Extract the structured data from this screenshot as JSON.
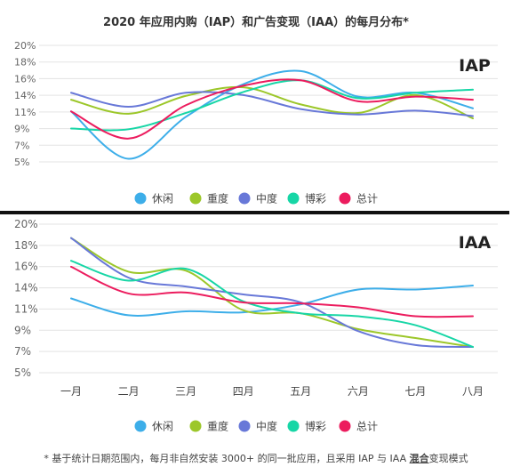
{
  "title": "2020 年应用内购（IAP）和广告变现（IAA）的每月分布*",
  "footnote": {
    "prefix": "* 基于统计日期范围内，每月非自然安装 3000+ 的同一批应用，且采用 IAP 与 IAA ",
    "highlight": "混合",
    "suffix": "变现模式"
  },
  "colors": {
    "休闲": "#3daee9",
    "重度": "#9cc72a",
    "中度": "#6878d8",
    "博彩": "#17d6a6",
    "总计": "#ec1c5e"
  },
  "chart_data": [
    {
      "type": "line",
      "panel_label": "IAP",
      "y_tick_labels": [
        "20%",
        "18%",
        "16%",
        "14%",
        "11%",
        "9%",
        "7%",
        "5%"
      ],
      "ylim": [
        5,
        20
      ],
      "legend_position": "bottom",
      "x": [
        "一月",
        "二月",
        "三月",
        "四月",
        "五月",
        "六月",
        "七月",
        "八月"
      ],
      "series": [
        {
          "name": "休闲",
          "values": [
            11.5,
            5.4,
            10.8,
            15.0,
            16.7,
            13.4,
            13.9,
            11.9
          ]
        },
        {
          "name": "重度",
          "values": [
            13.0,
            11.2,
            13.5,
            14.6,
            12.4,
            11.3,
            13.6,
            10.6
          ]
        },
        {
          "name": "中度",
          "values": [
            13.9,
            12.1,
            13.9,
            13.6,
            11.8,
            11.1,
            11.6,
            10.9
          ]
        },
        {
          "name": "博彩",
          "values": [
            9.3,
            9.2,
            11.3,
            14.0,
            15.5,
            13.2,
            13.9,
            14.3
          ]
        },
        {
          "name": "总计",
          "values": [
            11.5,
            8.0,
            12.3,
            14.8,
            15.5,
            12.8,
            13.4,
            13.0
          ]
        }
      ]
    },
    {
      "type": "line",
      "panel_label": "IAA",
      "y_tick_labels": [
        "20%",
        "18%",
        "16%",
        "14%",
        "11%",
        "9%",
        "7%",
        "5%"
      ],
      "ylim": [
        5,
        20
      ],
      "legend_position": "bottom",
      "x": [
        "一月",
        "二月",
        "三月",
        "四月",
        "五月",
        "六月",
        "七月",
        "八月"
      ],
      "series": [
        {
          "name": "休闲",
          "values": [
            12.5,
            10.8,
            11.2,
            11.1,
            11.9,
            13.4,
            13.4,
            13.8
          ]
        },
        {
          "name": "重度",
          "values": [
            18.6,
            15.2,
            15.3,
            11.3,
            11.0,
            9.4,
            8.5,
            7.6
          ]
        },
        {
          "name": "中度",
          "values": [
            18.6,
            14.6,
            13.7,
            12.9,
            12.1,
            9.2,
            7.8,
            7.6
          ]
        },
        {
          "name": "博彩",
          "values": [
            16.3,
            14.3,
            15.5,
            12.2,
            11.0,
            10.7,
            9.8,
            7.6
          ]
        },
        {
          "name": "总计",
          "values": [
            15.7,
            13.0,
            13.1,
            12.1,
            12.0,
            11.6,
            10.7,
            10.7
          ]
        }
      ]
    }
  ]
}
